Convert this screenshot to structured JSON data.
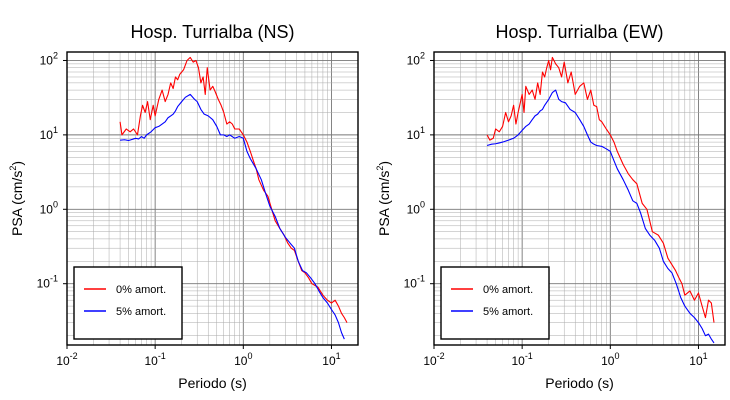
{
  "chart_data": [
    {
      "type": "line",
      "title": "Hosp. Turrialba (NS)",
      "xlabel": "Periodo (s)",
      "ylabel": "PSA (cm/s²)",
      "xscale": "log",
      "yscale": "log",
      "xlim": [
        0.01,
        20
      ],
      "ylim": [
        0.015,
        130
      ],
      "x_ticks": [
        "10^-2",
        "10^-1",
        "10^0",
        "10^1"
      ],
      "y_ticks": [
        "10^-1",
        "10^0",
        "10^1",
        "10^2"
      ],
      "grid": true,
      "legend_position": "bottom-left",
      "series": [
        {
          "name": "0% amort.",
          "color": "#ff0000",
          "points": [
            [
              0.04,
              15
            ],
            [
              0.042,
              10
            ],
            [
              0.047,
              12
            ],
            [
              0.052,
              11
            ],
            [
              0.057,
              12
            ],
            [
              0.063,
              10
            ],
            [
              0.068,
              18
            ],
            [
              0.072,
              25
            ],
            [
              0.077,
              20
            ],
            [
              0.082,
              28
            ],
            [
              0.088,
              16
            ],
            [
              0.095,
              25
            ],
            [
              0.1,
              18
            ],
            [
              0.11,
              30
            ],
            [
              0.12,
              40
            ],
            [
              0.13,
              28
            ],
            [
              0.14,
              35
            ],
            [
              0.15,
              50
            ],
            [
              0.16,
              42
            ],
            [
              0.17,
              60
            ],
            [
              0.18,
              55
            ],
            [
              0.19,
              65
            ],
            [
              0.21,
              75
            ],
            [
              0.23,
              100
            ],
            [
              0.25,
              110
            ],
            [
              0.27,
              95
            ],
            [
              0.29,
              100
            ],
            [
              0.31,
              80
            ],
            [
              0.33,
              50
            ],
            [
              0.35,
              60
            ],
            [
              0.37,
              35
            ],
            [
              0.39,
              80
            ],
            [
              0.42,
              40
            ],
            [
              0.45,
              45
            ],
            [
              0.48,
              38
            ],
            [
              0.52,
              30
            ],
            [
              0.56,
              25
            ],
            [
              0.6,
              20
            ],
            [
              0.65,
              14
            ],
            [
              0.7,
              15
            ],
            [
              0.75,
              14
            ],
            [
              0.8,
              12
            ],
            [
              0.9,
              12
            ],
            [
              1.0,
              10
            ],
            [
              1.1,
              8
            ],
            [
              1.2,
              6
            ],
            [
              1.3,
              4.5
            ],
            [
              1.4,
              3.5
            ],
            [
              1.5,
              2.5
            ],
            [
              1.7,
              1.8
            ],
            [
              1.9,
              1.5
            ],
            [
              2.1,
              1.0
            ],
            [
              2.3,
              0.7
            ],
            [
              2.6,
              0.55
            ],
            [
              2.9,
              0.45
            ],
            [
              3.2,
              0.35
            ],
            [
              3.5,
              0.3
            ],
            [
              3.8,
              0.28
            ],
            [
              4.2,
              0.2
            ],
            [
              4.6,
              0.15
            ],
            [
              5.0,
              0.14
            ],
            [
              5.5,
              0.12
            ],
            [
              6.0,
              0.1
            ],
            [
              7.0,
              0.09
            ],
            [
              8.0,
              0.07
            ],
            [
              9.0,
              0.06
            ],
            [
              10.0,
              0.055
            ],
            [
              11.0,
              0.06
            ],
            [
              12.0,
              0.05
            ],
            [
              13.0,
              0.04
            ],
            [
              14.0,
              0.035
            ],
            [
              15.0,
              0.03
            ]
          ]
        },
        {
          "name": "5% amort.",
          "color": "#0000ff",
          "points": [
            [
              0.04,
              8.5
            ],
            [
              0.045,
              8.6
            ],
            [
              0.05,
              8.4
            ],
            [
              0.055,
              8.7
            ],
            [
              0.06,
              9
            ],
            [
              0.065,
              8.8
            ],
            [
              0.07,
              9.5
            ],
            [
              0.075,
              9
            ],
            [
              0.08,
              10
            ],
            [
              0.09,
              11
            ],
            [
              0.1,
              12.5
            ],
            [
              0.11,
              13
            ],
            [
              0.12,
              14
            ],
            [
              0.13,
              15
            ],
            [
              0.14,
              17
            ],
            [
              0.15,
              18
            ],
            [
              0.16,
              19
            ],
            [
              0.17,
              21
            ],
            [
              0.18,
              24
            ],
            [
              0.2,
              28
            ],
            [
              0.22,
              32
            ],
            [
              0.25,
              35
            ],
            [
              0.28,
              30
            ],
            [
              0.3,
              28
            ],
            [
              0.33,
              22
            ],
            [
              0.36,
              19
            ],
            [
              0.4,
              18
            ],
            [
              0.45,
              16
            ],
            [
              0.5,
              13
            ],
            [
              0.55,
              10
            ],
            [
              0.6,
              10
            ],
            [
              0.65,
              9.5
            ],
            [
              0.7,
              10
            ],
            [
              0.8,
              9
            ],
            [
              0.9,
              9.5
            ],
            [
              1.0,
              9
            ],
            [
              1.1,
              6
            ],
            [
              1.2,
              4.8
            ],
            [
              1.4,
              3.5
            ],
            [
              1.6,
              2.5
            ],
            [
              1.8,
              1.6
            ],
            [
              2.0,
              1.1
            ],
            [
              2.3,
              0.8
            ],
            [
              2.6,
              0.55
            ],
            [
              3.0,
              0.42
            ],
            [
              3.4,
              0.35
            ],
            [
              3.8,
              0.3
            ],
            [
              4.2,
              0.2
            ],
            [
              4.7,
              0.15
            ],
            [
              5.2,
              0.14
            ],
            [
              5.8,
              0.12
            ],
            [
              6.5,
              0.1
            ],
            [
              7.2,
              0.08
            ],
            [
              8.0,
              0.065
            ],
            [
              9.0,
              0.055
            ],
            [
              10.0,
              0.045
            ],
            [
              11.0,
              0.038
            ],
            [
              12.0,
              0.03
            ],
            [
              13.0,
              0.022
            ],
            [
              14.0,
              0.018
            ]
          ]
        }
      ]
    },
    {
      "type": "line",
      "title": "Hosp. Turrialba (EW)",
      "xlabel": "Periodo (s)",
      "ylabel": "PSA (cm/s²)",
      "xscale": "log",
      "yscale": "log",
      "xlim": [
        0.01,
        20
      ],
      "ylim": [
        0.015,
        130
      ],
      "x_ticks": [
        "10^-2",
        "10^-1",
        "10^0",
        "10^1"
      ],
      "y_ticks": [
        "10^-1",
        "10^0",
        "10^1",
        "10^2"
      ],
      "grid": true,
      "legend_position": "bottom-left",
      "series": [
        {
          "name": "0% amort.",
          "color": "#ff0000",
          "points": [
            [
              0.04,
              10
            ],
            [
              0.043,
              8.5
            ],
            [
              0.047,
              9
            ],
            [
              0.05,
              12
            ],
            [
              0.055,
              11
            ],
            [
              0.06,
              13
            ],
            [
              0.065,
              20
            ],
            [
              0.07,
              15
            ],
            [
              0.075,
              18
            ],
            [
              0.08,
              25
            ],
            [
              0.085,
              14
            ],
            [
              0.09,
              20
            ],
            [
              0.1,
              35
            ],
            [
              0.105,
              20
            ],
            [
              0.11,
              45
            ],
            [
              0.12,
              35
            ],
            [
              0.13,
              40
            ],
            [
              0.14,
              30
            ],
            [
              0.15,
              50
            ],
            [
              0.16,
              35
            ],
            [
              0.17,
              70
            ],
            [
              0.18,
              60
            ],
            [
              0.19,
              80
            ],
            [
              0.2,
              100
            ],
            [
              0.21,
              75
            ],
            [
              0.22,
              110
            ],
            [
              0.24,
              90
            ],
            [
              0.26,
              80
            ],
            [
              0.28,
              60
            ],
            [
              0.3,
              95
            ],
            [
              0.33,
              50
            ],
            [
              0.36,
              70
            ],
            [
              0.4,
              35
            ],
            [
              0.45,
              45
            ],
            [
              0.5,
              50
            ],
            [
              0.55,
              30
            ],
            [
              0.6,
              40
            ],
            [
              0.65,
              25
            ],
            [
              0.7,
              24
            ],
            [
              0.75,
              16
            ],
            [
              0.8,
              15
            ],
            [
              0.9,
              12
            ],
            [
              1.0,
              10
            ],
            [
              1.1,
              8
            ],
            [
              1.2,
              6
            ],
            [
              1.4,
              4
            ],
            [
              1.6,
              3
            ],
            [
              1.8,
              2.5
            ],
            [
              2.0,
              2.2
            ],
            [
              2.3,
              1.2
            ],
            [
              2.6,
              1.0
            ],
            [
              3.0,
              0.5
            ],
            [
              3.5,
              0.45
            ],
            [
              4.0,
              0.35
            ],
            [
              4.5,
              0.22
            ],
            [
              5.0,
              0.18
            ],
            [
              5.5,
              0.15
            ],
            [
              6.0,
              0.12
            ],
            [
              6.5,
              0.1
            ],
            [
              7.0,
              0.07
            ],
            [
              8.0,
              0.08
            ],
            [
              9.0,
              0.06
            ],
            [
              10.0,
              0.075
            ],
            [
              11.0,
              0.05
            ],
            [
              12.0,
              0.035
            ],
            [
              13.0,
              0.06
            ],
            [
              14.0,
              0.055
            ],
            [
              15.0,
              0.03
            ]
          ]
        },
        {
          "name": "5% amort.",
          "color": "#0000ff",
          "points": [
            [
              0.04,
              7.2
            ],
            [
              0.045,
              7.5
            ],
            [
              0.05,
              7.6
            ],
            [
              0.055,
              7.8
            ],
            [
              0.06,
              8
            ],
            [
              0.07,
              8.5
            ],
            [
              0.08,
              9
            ],
            [
              0.09,
              10
            ],
            [
              0.1,
              11.5
            ],
            [
              0.11,
              13
            ],
            [
              0.12,
              14
            ],
            [
              0.13,
              16
            ],
            [
              0.14,
              18
            ],
            [
              0.15,
              19
            ],
            [
              0.16,
              21
            ],
            [
              0.17,
              22
            ],
            [
              0.18,
              25
            ],
            [
              0.2,
              30
            ],
            [
              0.22,
              37
            ],
            [
              0.24,
              40
            ],
            [
              0.26,
              30
            ],
            [
              0.28,
              28
            ],
            [
              0.31,
              27
            ],
            [
              0.35,
              22
            ],
            [
              0.4,
              20
            ],
            [
              0.45,
              16
            ],
            [
              0.5,
              13
            ],
            [
              0.55,
              10
            ],
            [
              0.6,
              8
            ],
            [
              0.65,
              7.5
            ],
            [
              0.7,
              7.2
            ],
            [
              0.8,
              7
            ],
            [
              0.9,
              6.5
            ],
            [
              1.0,
              6
            ],
            [
              1.1,
              4.5
            ],
            [
              1.2,
              3.5
            ],
            [
              1.4,
              2.5
            ],
            [
              1.6,
              1.8
            ],
            [
              1.8,
              1.3
            ],
            [
              2.0,
              1.2
            ],
            [
              2.2,
              0.9
            ],
            [
              2.5,
              0.55
            ],
            [
              2.8,
              0.45
            ],
            [
              3.2,
              0.38
            ],
            [
              3.6,
              0.3
            ],
            [
              4.0,
              0.2
            ],
            [
              4.5,
              0.16
            ],
            [
              5.0,
              0.14
            ],
            [
              5.6,
              0.1
            ],
            [
              6.3,
              0.065
            ],
            [
              7.0,
              0.05
            ],
            [
              8.0,
              0.04
            ],
            [
              9.0,
              0.035
            ],
            [
              10.0,
              0.03
            ],
            [
              11.0,
              0.025
            ],
            [
              12.0,
              0.02
            ],
            [
              13.0,
              0.021
            ],
            [
              14.0,
              0.018
            ],
            [
              15.0,
              0.016
            ]
          ]
        }
      ]
    }
  ]
}
